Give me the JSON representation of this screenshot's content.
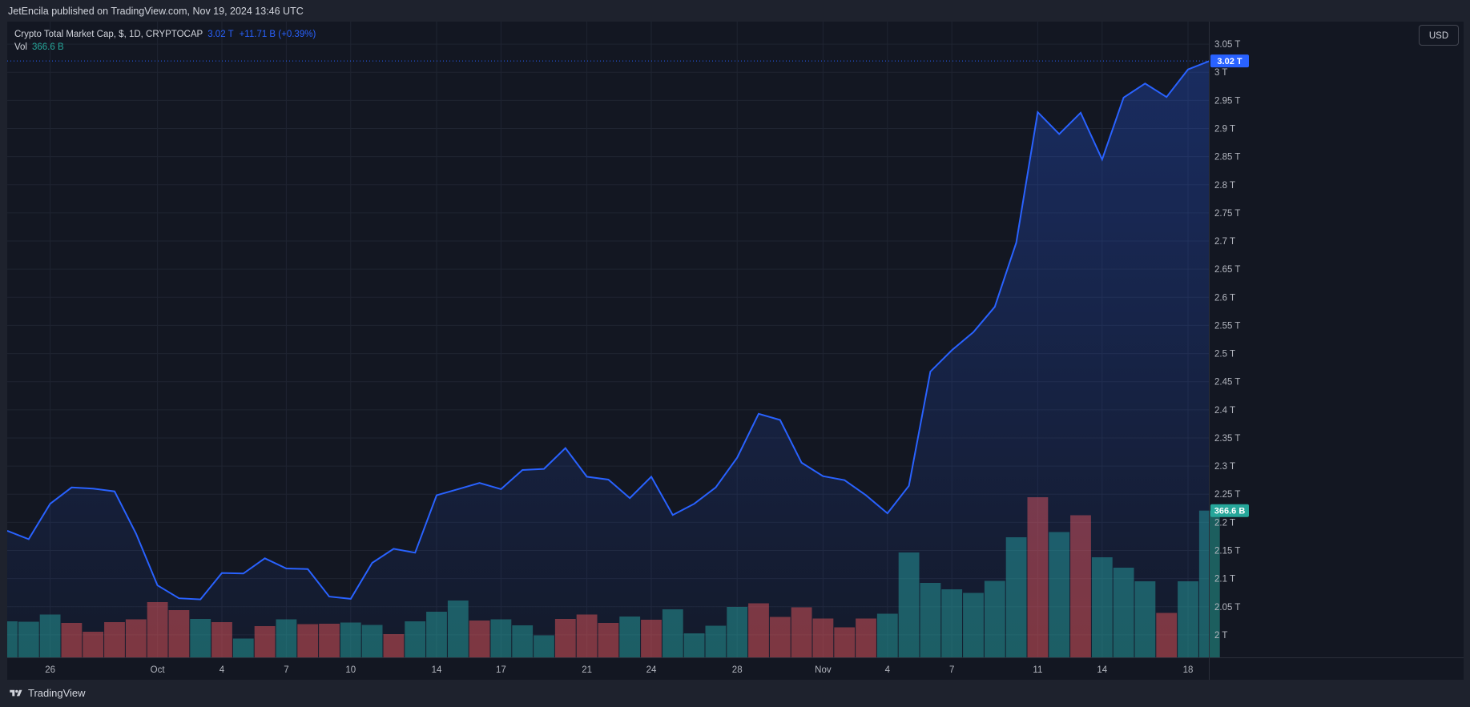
{
  "header": {
    "publisher_line": "JetEncila published on TradingView.com, Nov 19, 2024 13:46 UTC"
  },
  "legend": {
    "symbol_line": "Crypto Total Market Cap, $, 1D, CRYPTOCAP",
    "last_value": "3.02 T",
    "change": "+11.71 B (+0.39%)",
    "vol_label": "Vol",
    "vol_value": "366.6 B"
  },
  "currency_button": "USD",
  "footer": {
    "brand": "TradingView",
    "logo_icon": "tradingview-logo-icon"
  },
  "colors": {
    "line": "#2962ff",
    "up_volume": "#26a69a",
    "down_volume": "#ef5350",
    "background": "#131722"
  },
  "chart_data": {
    "type": "area",
    "price_series": {
      "x": [
        "Sep 24",
        "Sep 25",
        "Sep 26",
        "Sep 27",
        "Sep 28",
        "Sep 29",
        "Sep 30",
        "Oct 1",
        "Oct 2",
        "Oct 3",
        "Oct 4",
        "Oct 5",
        "Oct 6",
        "Oct 7",
        "Oct 8",
        "Oct 9",
        "Oct 10",
        "Oct 11",
        "Oct 12",
        "Oct 13",
        "Oct 14",
        "Oct 15",
        "Oct 16",
        "Oct 17",
        "Oct 18",
        "Oct 19",
        "Oct 20",
        "Oct 21",
        "Oct 22",
        "Oct 23",
        "Oct 24",
        "Oct 25",
        "Oct 26",
        "Oct 27",
        "Oct 28",
        "Oct 29",
        "Oct 30",
        "Oct 31",
        "Nov 1",
        "Nov 2",
        "Nov 3",
        "Nov 4",
        "Nov 5",
        "Nov 6",
        "Nov 7",
        "Nov 8",
        "Nov 9",
        "Nov 10",
        "Nov 11",
        "Nov 12",
        "Nov 13",
        "Nov 14",
        "Nov 15",
        "Nov 16",
        "Nov 17",
        "Nov 18",
        "Nov 19"
      ],
      "values_T": [
        2.185,
        2.17,
        2.233,
        2.262,
        2.26,
        2.255,
        2.18,
        2.088,
        2.065,
        2.063,
        2.11,
        2.109,
        2.136,
        2.118,
        2.117,
        2.068,
        2.064,
        2.128,
        2.153,
        2.146,
        2.248,
        2.259,
        2.27,
        2.259,
        2.293,
        2.295,
        2.332,
        2.281,
        2.276,
        2.243,
        2.281,
        2.213,
        2.233,
        2.262,
        2.315,
        2.393,
        2.382,
        2.306,
        2.282,
        2.275,
        2.248,
        2.216,
        2.265,
        2.468,
        2.506,
        2.538,
        2.583,
        2.697,
        2.929,
        2.89,
        2.928,
        2.845,
        2.955,
        2.98,
        2.956,
        3.005,
        3.02
      ]
    },
    "volume_series": {
      "name": "Vol",
      "values_B": [
        90,
        89,
        107,
        86,
        64,
        88,
        95,
        138,
        118,
        96,
        88,
        47,
        78,
        95,
        83,
        84,
        87,
        81,
        58,
        90,
        114,
        142,
        92,
        95,
        80,
        55,
        96,
        107,
        86,
        102,
        94,
        120,
        60,
        79,
        126,
        135,
        101,
        125,
        97,
        75,
        97,
        109,
        262,
        186,
        170,
        161,
        191,
        300,
        400,
        313,
        355,
        250,
        224,
        190,
        111,
        190,
        366.6
      ],
      "up": [
        1,
        1,
        1,
        0,
        0,
        0,
        0,
        0,
        0,
        1,
        0,
        1,
        0,
        1,
        0,
        0,
        1,
        1,
        0,
        1,
        1,
        1,
        0,
        1,
        1,
        1,
        0,
        0,
        0,
        1,
        0,
        1,
        1,
        1,
        1,
        0,
        0,
        0,
        0,
        0,
        0,
        1,
        1,
        1,
        1,
        1,
        1,
        1,
        0,
        1,
        0,
        1,
        1,
        1,
        0,
        1,
        1
      ]
    },
    "y_ticks": [
      "3.05 T",
      "3 T",
      "2.95 T",
      "2.9 T",
      "2.85 T",
      "2.8 T",
      "2.75 T",
      "2.7 T",
      "2.65 T",
      "2.6 T",
      "2.55 T",
      "2.5 T",
      "2.45 T",
      "2.4 T",
      "2.35 T",
      "2.3 T",
      "2.25 T",
      "2.2 T",
      "2.15 T",
      "2.1 T",
      "2.05 T",
      "2 T"
    ],
    "y_tick_values": [
      3.05,
      3.0,
      2.95,
      2.9,
      2.85,
      2.8,
      2.75,
      2.7,
      2.65,
      2.6,
      2.55,
      2.5,
      2.45,
      2.4,
      2.35,
      2.3,
      2.25,
      2.2,
      2.15,
      2.1,
      2.05,
      2.0
    ],
    "x_ticks": [
      {
        "label": "26",
        "index": 2
      },
      {
        "label": "Oct",
        "index": 7
      },
      {
        "label": "4",
        "index": 10
      },
      {
        "label": "7",
        "index": 13
      },
      {
        "label": "10",
        "index": 16
      },
      {
        "label": "14",
        "index": 20
      },
      {
        "label": "17",
        "index": 23
      },
      {
        "label": "21",
        "index": 27
      },
      {
        "label": "24",
        "index": 30
      },
      {
        "label": "28",
        "index": 34
      },
      {
        "label": "Nov",
        "index": 38
      },
      {
        "label": "4",
        "index": 41
      },
      {
        "label": "7",
        "index": 44
      },
      {
        "label": "11",
        "index": 48
      },
      {
        "label": "14",
        "index": 51
      },
      {
        "label": "18",
        "index": 55
      }
    ],
    "last_price_label": "3.02 T",
    "last_price": 3.02,
    "last_volume_label": "366.6 B",
    "ylim": [
      1.96,
      3.09
    ],
    "grid": true
  }
}
